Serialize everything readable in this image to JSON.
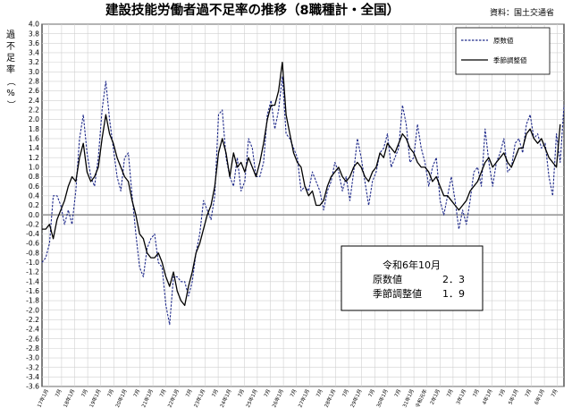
{
  "title": "建設技能労働者過不足率の推移（8職種計・全国）",
  "source": "資料：国土交通省",
  "chart_data": {
    "type": "line",
    "ylabel": "過不足率（%）",
    "ylim": [
      -3.6,
      4.0
    ],
    "yticks": [
      "4.0",
      "3.8",
      "3.6",
      "3.4",
      "3.2",
      "3.0",
      "2.8",
      "2.6",
      "2.4",
      "2.2",
      "2.0",
      "1.8",
      "1.6",
      "1.4",
      "1.2",
      "1.0",
      "0.8",
      "0.6",
      "0.4",
      "0.2",
      "0.0",
      "-0.2",
      "-0.4",
      "-0.6",
      "-0.8",
      "-1.0",
      "-1.2",
      "-1.4",
      "-1.6",
      "-1.8",
      "-2.0",
      "-2.2",
      "-2.4",
      "-2.6",
      "-2.8",
      "-3.0",
      "-3.2",
      "-3.4",
      "-3.6"
    ],
    "grid": true,
    "legend_position": "top-right",
    "xticks": [
      "17年1月",
      "7月",
      "18年1月",
      "7月",
      "19年1月",
      "7月",
      "20年1月",
      "7月",
      "21年1月",
      "7月",
      "22年1月",
      "7月",
      "23年1月",
      "7月",
      "24年1月",
      "7月",
      "25年1月",
      "7月",
      "26年1月",
      "7月",
      "27年1月",
      "7月",
      "28年1月",
      "7月",
      "29年1月",
      "7月",
      "30年1月",
      "7月",
      "31年1月",
      "令和元年",
      "2年1月",
      "7月",
      "3年1月",
      "7月",
      "4年1月",
      "7月",
      "5年1月",
      "7月",
      "6年1月",
      "7月"
    ],
    "series": [
      {
        "name": "原数値",
        "color": "#1f2a8a",
        "dash": true,
        "values": [
          -1.0,
          -0.9,
          -0.6,
          0.4,
          0.4,
          0.2,
          -0.2,
          0.1,
          -0.2,
          0.5,
          1.6,
          2.1,
          1.3,
          0.8,
          0.6,
          1.2,
          2.2,
          2.8,
          2.0,
          1.4,
          0.8,
          0.5,
          1.2,
          1.3,
          0.4,
          -0.4,
          -1.1,
          -1.3,
          -0.7,
          -0.5,
          -0.4,
          -1.0,
          -1.1,
          -1.9,
          -2.3,
          -1.3,
          -1.3,
          -1.4,
          -1.4,
          -1.7,
          -1.4,
          -0.8,
          -0.4,
          0.3,
          0.1,
          -0.1,
          0.4,
          2.1,
          2.2,
          1.2,
          0.8,
          0.6,
          1.2,
          0.5,
          0.7,
          1.6,
          1.4,
          0.8,
          0.8,
          1.1,
          2.1,
          2.4,
          1.8,
          2.2,
          2.9,
          1.7,
          1.6,
          1.4,
          1.2,
          0.5,
          0.6,
          0.5,
          0.9,
          0.7,
          0.5,
          0.1,
          0.5,
          0.7,
          1.1,
          0.9,
          0.5,
          0.8,
          0.3,
          0.9,
          1.6,
          1.2,
          0.7,
          0.2,
          0.7,
          0.9,
          1.3,
          1.4,
          1.7,
          1.0,
          1.2,
          1.4,
          2.3,
          1.9,
          1.1,
          1.2,
          1.9,
          1.4,
          1.1,
          0.6,
          1.0,
          1.2,
          0.3,
          0.0,
          0.4,
          0.8,
          0.3,
          -0.3,
          0.1,
          -0.2,
          0.3,
          0.9,
          1.0,
          0.6,
          1.8,
          1.1,
          0.6,
          1.1,
          1.3,
          1.6,
          0.9,
          1.0,
          1.5,
          1.6,
          1.3,
          1.9,
          2.1,
          1.6,
          1.7,
          1.4,
          1.5,
          0.8,
          0.4,
          1.7,
          1.1,
          2.3
        ]
      },
      {
        "name": "季節調整値",
        "color": "#000000",
        "dash": false,
        "values": [
          -0.3,
          -0.3,
          -0.2,
          -0.5,
          -0.1,
          0.1,
          0.3,
          0.6,
          0.8,
          0.7,
          1.2,
          1.5,
          0.9,
          0.7,
          0.8,
          1.0,
          1.6,
          2.1,
          1.7,
          1.5,
          1.2,
          1.0,
          0.8,
          0.7,
          0.3,
          0.0,
          -0.4,
          -0.5,
          -0.8,
          -0.9,
          -0.9,
          -0.8,
          -1.0,
          -1.3,
          -1.5,
          -1.2,
          -1.6,
          -1.8,
          -1.9,
          -1.5,
          -1.2,
          -0.8,
          -0.6,
          -0.3,
          0.0,
          0.2,
          0.6,
          1.3,
          1.6,
          1.3,
          0.8,
          1.3,
          1.0,
          1.1,
          0.9,
          1.2,
          1.0,
          0.8,
          1.1,
          1.5,
          2.0,
          2.3,
          2.3,
          2.6,
          3.2,
          2.1,
          1.7,
          1.3,
          1.1,
          1.0,
          0.6,
          0.4,
          0.5,
          0.2,
          0.2,
          0.3,
          0.6,
          0.8,
          0.9,
          1.0,
          0.8,
          0.7,
          0.8,
          1.0,
          1.1,
          1.0,
          0.8,
          0.7,
          0.9,
          1.0,
          1.3,
          1.2,
          1.5,
          1.4,
          1.3,
          1.5,
          1.7,
          1.6,
          1.4,
          1.3,
          1.1,
          1.0,
          1.0,
          0.9,
          0.7,
          0.8,
          0.6,
          0.4,
          0.4,
          0.3,
          0.2,
          0.1,
          0.2,
          0.3,
          0.5,
          0.6,
          0.7,
          0.9,
          1.1,
          1.2,
          1.0,
          1.1,
          1.2,
          1.3,
          1.1,
          1.0,
          1.2,
          1.4,
          1.4,
          1.7,
          1.8,
          1.6,
          1.5,
          1.6,
          1.4,
          1.2,
          1.1,
          1.0,
          1.9
        ]
      }
    ]
  },
  "info_box": {
    "period": "令和6年10月",
    "rows": [
      {
        "label": "原数値",
        "value": "2．3"
      },
      {
        "label": "季節調整値",
        "value": "1．9"
      }
    ]
  }
}
